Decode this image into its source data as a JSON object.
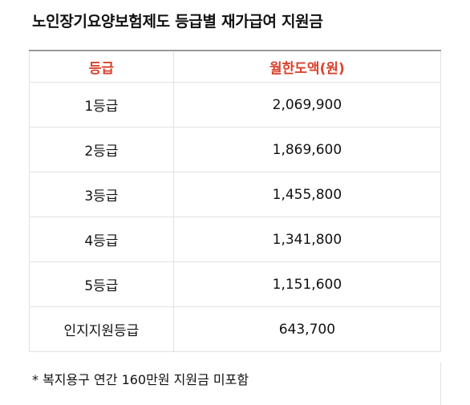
{
  "title": "노인장기요양보험제도 등급별 재가급여 지원금",
  "table": {
    "headers": {
      "grade": "등급",
      "amount": "월한도액(원)"
    },
    "rows": [
      {
        "grade": "1등급",
        "amount": "2,069,900"
      },
      {
        "grade": "2등급",
        "amount": "1,869,600"
      },
      {
        "grade": "3등급",
        "amount": "1,455,800"
      },
      {
        "grade": "4등급",
        "amount": "1,341,800"
      },
      {
        "grade": "5등급",
        "amount": "1,151,600"
      },
      {
        "grade": "인지지원등급",
        "amount": "643,700"
      }
    ]
  },
  "note": "* 복지용구 연간 160만원 지원금 미포함",
  "colors": {
    "header_text": "#d9432e",
    "border": "#e2e2e2",
    "top_border": "#9a9a9a"
  }
}
